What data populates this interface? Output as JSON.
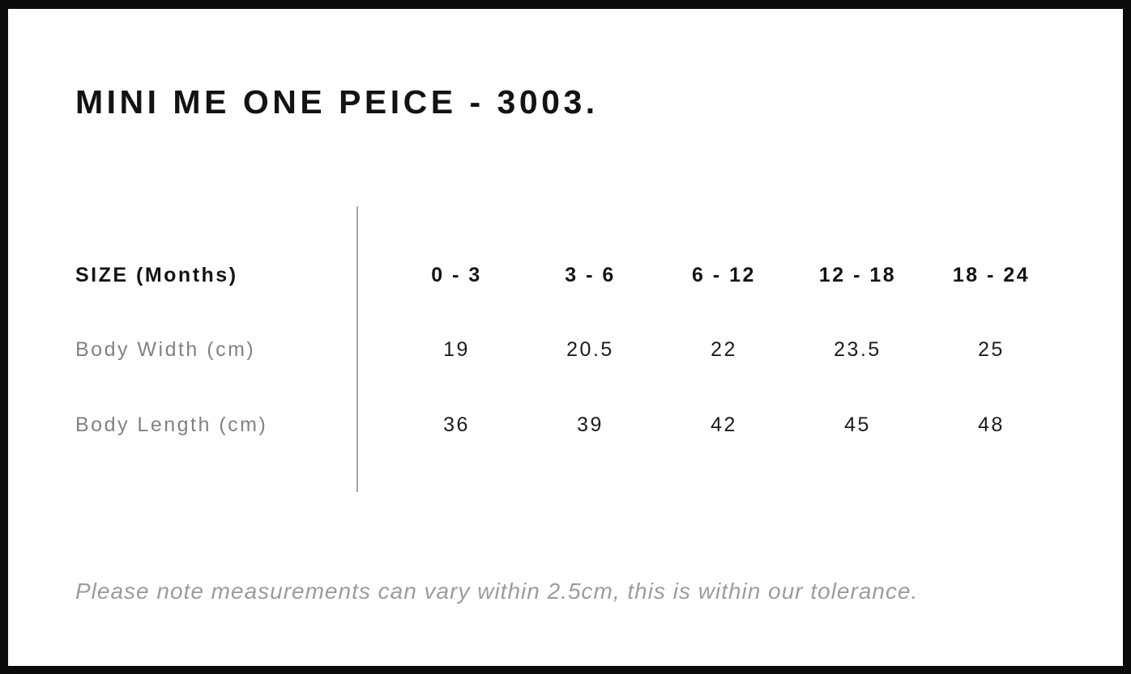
{
  "header": {
    "title": "MINI ME ONE PEICE - 3003."
  },
  "chart_data": {
    "type": "table",
    "title": "MINI ME ONE PEICE - 3003.",
    "columns": [
      "SIZE (Months)",
      "0 - 3",
      "3 - 6",
      "6 - 12",
      "12 - 18",
      "18 - 24"
    ],
    "rows": [
      {
        "label": "Body Width (cm)",
        "values": [
          "19",
          "20.5",
          "22",
          "23.5",
          "25"
        ]
      },
      {
        "label": "Body Length (cm)",
        "values": [
          "36",
          "39",
          "42",
          "45",
          "48"
        ]
      }
    ],
    "footnote": "Please note measurements can vary within 2.5cm, this is within our tolerance."
  },
  "footer": {
    "note": "Please note measurements can vary within 2.5cm, this is within our tolerance."
  },
  "colors": {
    "background": "#ffffff",
    "frame_border": "#0b0b0b",
    "title_text": "#131313",
    "header_text": "#141414",
    "value_text": "#1c1c1c",
    "row_label_text": "#828282",
    "divider": "#a6a6a6",
    "note_text": "#9c9c9c"
  }
}
